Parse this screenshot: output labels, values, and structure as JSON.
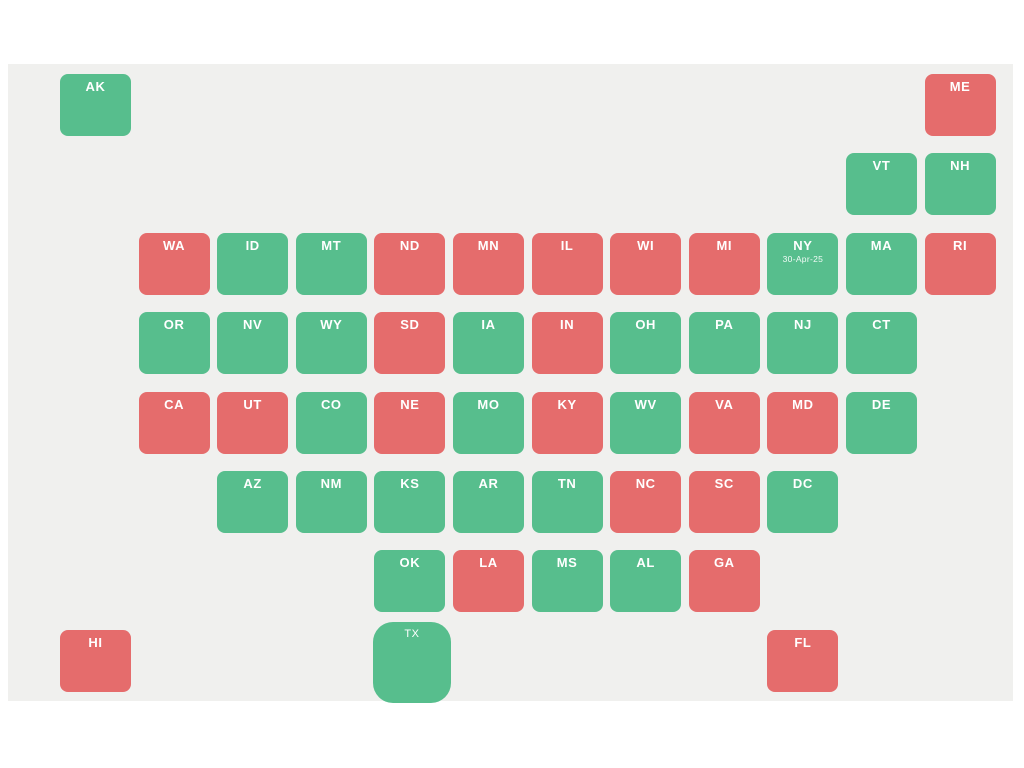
{
  "map": {
    "name": "us-state-tile-grid-map",
    "date_label": "30-Apr-25",
    "colors": {
      "green": "#57be8d",
      "red": "#e56c6c",
      "panel": "#f0f0ee",
      "page": "#ffffff",
      "label": "#ffffff"
    },
    "legend_meaning": {
      "green": "positive-status",
      "red": "negative-status"
    },
    "states": [
      {
        "abbr": "AK",
        "row": 0,
        "col": 0,
        "status": "green"
      },
      {
        "abbr": "ME",
        "row": 0,
        "col": 11,
        "status": "red"
      },
      {
        "abbr": "VT",
        "row": 1,
        "col": 10,
        "status": "green"
      },
      {
        "abbr": "NH",
        "row": 1,
        "col": 11,
        "status": "green"
      },
      {
        "abbr": "WA",
        "row": 2,
        "col": 1,
        "status": "red"
      },
      {
        "abbr": "ID",
        "row": 2,
        "col": 2,
        "status": "green"
      },
      {
        "abbr": "MT",
        "row": 2,
        "col": 3,
        "status": "green"
      },
      {
        "abbr": "ND",
        "row": 2,
        "col": 4,
        "status": "red"
      },
      {
        "abbr": "MN",
        "row": 2,
        "col": 5,
        "status": "red"
      },
      {
        "abbr": "IL",
        "row": 2,
        "col": 6,
        "status": "red"
      },
      {
        "abbr": "WI",
        "row": 2,
        "col": 7,
        "status": "red"
      },
      {
        "abbr": "MI",
        "row": 2,
        "col": 8,
        "status": "red"
      },
      {
        "abbr": "NY",
        "row": 2,
        "col": 9,
        "status": "green",
        "sublabel": "30-Apr-25"
      },
      {
        "abbr": "MA",
        "row": 2,
        "col": 10,
        "status": "green"
      },
      {
        "abbr": "RI",
        "row": 2,
        "col": 11,
        "status": "red"
      },
      {
        "abbr": "OR",
        "row": 3,
        "col": 1,
        "status": "green"
      },
      {
        "abbr": "NV",
        "row": 3,
        "col": 2,
        "status": "green"
      },
      {
        "abbr": "WY",
        "row": 3,
        "col": 3,
        "status": "green"
      },
      {
        "abbr": "SD",
        "row": 3,
        "col": 4,
        "status": "red"
      },
      {
        "abbr": "IA",
        "row": 3,
        "col": 5,
        "status": "green"
      },
      {
        "abbr": "IN",
        "row": 3,
        "col": 6,
        "status": "red"
      },
      {
        "abbr": "OH",
        "row": 3,
        "col": 7,
        "status": "green"
      },
      {
        "abbr": "PA",
        "row": 3,
        "col": 8,
        "status": "green"
      },
      {
        "abbr": "NJ",
        "row": 3,
        "col": 9,
        "status": "green"
      },
      {
        "abbr": "CT",
        "row": 3,
        "col": 10,
        "status": "green"
      },
      {
        "abbr": "CA",
        "row": 4,
        "col": 1,
        "status": "red"
      },
      {
        "abbr": "UT",
        "row": 4,
        "col": 2,
        "status": "red"
      },
      {
        "abbr": "CO",
        "row": 4,
        "col": 3,
        "status": "green"
      },
      {
        "abbr": "NE",
        "row": 4,
        "col": 4,
        "status": "red"
      },
      {
        "abbr": "MO",
        "row": 4,
        "col": 5,
        "status": "green"
      },
      {
        "abbr": "KY",
        "row": 4,
        "col": 6,
        "status": "red"
      },
      {
        "abbr": "WV",
        "row": 4,
        "col": 7,
        "status": "green"
      },
      {
        "abbr": "VA",
        "row": 4,
        "col": 8,
        "status": "red"
      },
      {
        "abbr": "MD",
        "row": 4,
        "col": 9,
        "status": "red"
      },
      {
        "abbr": "DE",
        "row": 4,
        "col": 10,
        "status": "green"
      },
      {
        "abbr": "AZ",
        "row": 5,
        "col": 2,
        "status": "green"
      },
      {
        "abbr": "NM",
        "row": 5,
        "col": 3,
        "status": "green"
      },
      {
        "abbr": "KS",
        "row": 5,
        "col": 4,
        "status": "green"
      },
      {
        "abbr": "AR",
        "row": 5,
        "col": 5,
        "status": "green"
      },
      {
        "abbr": "TN",
        "row": 5,
        "col": 6,
        "status": "green"
      },
      {
        "abbr": "NC",
        "row": 5,
        "col": 7,
        "status": "red"
      },
      {
        "abbr": "SC",
        "row": 5,
        "col": 8,
        "status": "red"
      },
      {
        "abbr": "DC",
        "row": 5,
        "col": 9,
        "status": "green"
      },
      {
        "abbr": "OK",
        "row": 6,
        "col": 4,
        "status": "green"
      },
      {
        "abbr": "LA",
        "row": 6,
        "col": 5,
        "status": "red"
      },
      {
        "abbr": "MS",
        "row": 6,
        "col": 6,
        "status": "green"
      },
      {
        "abbr": "AL",
        "row": 6,
        "col": 7,
        "status": "green"
      },
      {
        "abbr": "GA",
        "row": 6,
        "col": 8,
        "status": "red"
      },
      {
        "abbr": "HI",
        "row": 7,
        "col": 0,
        "status": "red"
      },
      {
        "abbr": "TX",
        "row": 7,
        "col": 4,
        "status": "green",
        "enlarged": true
      },
      {
        "abbr": "FL",
        "row": 7,
        "col": 9,
        "status": "red"
      }
    ]
  }
}
